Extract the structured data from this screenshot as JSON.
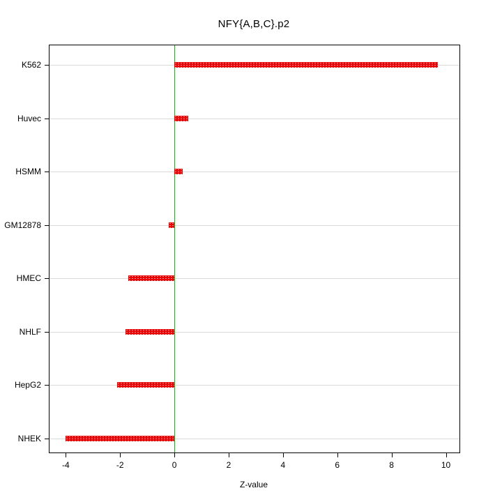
{
  "title": "NFY{A,B,C}.p2",
  "xlabel": "Z-value",
  "chart_data": {
    "type": "bar",
    "orientation": "horizontal",
    "title": "NFY{A,B,C}.p2",
    "xlabel": "Z-value",
    "ylabel": "",
    "categories": [
      "K562",
      "Huvec",
      "HSMM",
      "GM12878",
      "HMEC",
      "NHLF",
      "HepG2",
      "NHEK"
    ],
    "values": [
      9.7,
      0.5,
      0.3,
      -0.2,
      -1.7,
      -1.8,
      -2.1,
      -4.0
    ],
    "xlim": [
      -4.6,
      10.5
    ],
    "xticks": [
      -4,
      -2,
      0,
      2,
      4,
      6,
      8,
      10
    ],
    "grid": true,
    "legend": "none",
    "bar_color": "#ee0000",
    "zero_line_color": "#00cc00",
    "grid_color": "#d9d9d9"
  }
}
